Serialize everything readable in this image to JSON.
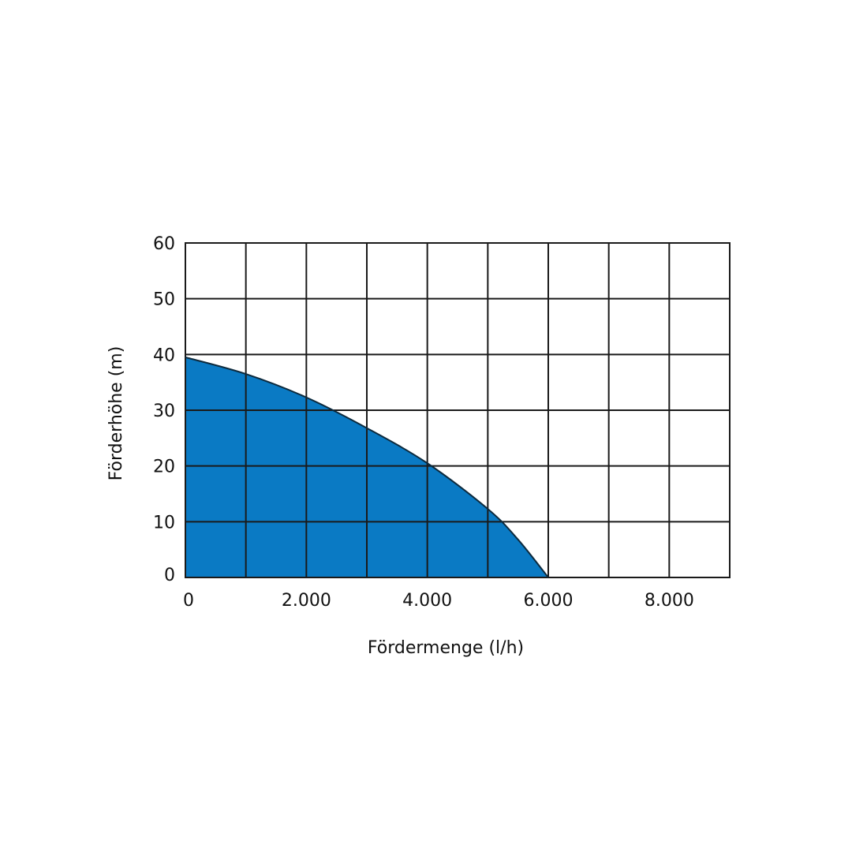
{
  "chart_data": {
    "type": "area",
    "title": "",
    "xlabel": "Fördermenge (l/h)",
    "ylabel": "Förderhöhe (m)",
    "xlim": [
      0,
      9000
    ],
    "ylim": [
      0,
      60
    ],
    "x_tick_values": [
      0,
      2000,
      4000,
      6000,
      8000
    ],
    "x_tick_labels": [
      "0",
      "2.000",
      "4.000",
      "6.000",
      "8.000"
    ],
    "x_grid_step": 1000,
    "y_tick_values": [
      0,
      10,
      20,
      30,
      40,
      50,
      60
    ],
    "y_tick_labels": [
      "0",
      "10",
      "20",
      "30",
      "40",
      "50",
      "60"
    ],
    "grid": true,
    "legend": "none",
    "series": [
      {
        "x": [
          0,
          1000,
          2000,
          3000,
          4000,
          5000,
          5500,
          6000
        ],
        "y": [
          39.5,
          36.5,
          32.3,
          26.8,
          20.5,
          12.3,
          6.8,
          0
        ],
        "fill_color": "#0a7ac4",
        "line_color": "#0d2a3d"
      }
    ]
  }
}
